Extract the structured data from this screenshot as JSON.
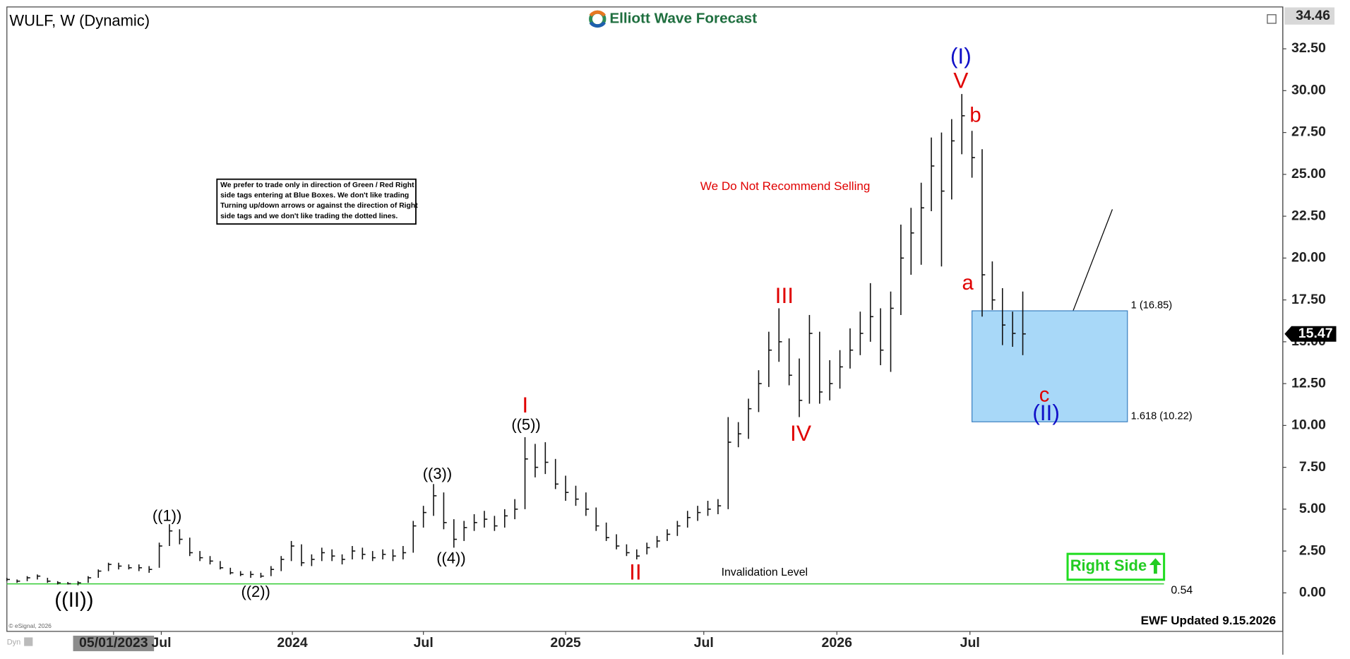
{
  "header": {
    "symbol": "WULF, W (Dynamic)",
    "brand": "Elliott Wave Forecast"
  },
  "chart_data": {
    "type": "hlc",
    "bars": [
      [
        0.9,
        0.7,
        0.8
      ],
      [
        0.8,
        0.6,
        0.7
      ],
      [
        1.0,
        0.7,
        0.9
      ],
      [
        1.1,
        0.8,
        1.0
      ],
      [
        0.9,
        0.6,
        0.7
      ],
      [
        0.7,
        0.5,
        0.6
      ],
      [
        0.65,
        0.5,
        0.55
      ],
      [
        0.7,
        0.45,
        0.6
      ],
      [
        1.0,
        0.6,
        0.9
      ],
      [
        1.4,
        0.9,
        1.3
      ],
      [
        1.8,
        1.3,
        1.7
      ],
      [
        1.8,
        1.4,
        1.6
      ],
      [
        1.7,
        1.4,
        1.5
      ],
      [
        1.7,
        1.3,
        1.5
      ],
      [
        1.6,
        1.2,
        1.4
      ],
      [
        3.0,
        1.5,
        2.8
      ],
      [
        4.1,
        2.8,
        3.7
      ],
      [
        3.8,
        2.9,
        3.2
      ],
      [
        3.3,
        2.2,
        2.4
      ],
      [
        2.5,
        1.9,
        2.1
      ],
      [
        2.2,
        1.7,
        1.9
      ],
      [
        1.9,
        1.4,
        1.5
      ],
      [
        1.5,
        1.1,
        1.2
      ],
      [
        1.3,
        1.0,
        1.1
      ],
      [
        1.3,
        0.9,
        1.1
      ],
      [
        1.2,
        0.9,
        1.0
      ],
      [
        1.6,
        1.0,
        1.4
      ],
      [
        2.2,
        1.3,
        2.0
      ],
      [
        3.1,
        1.9,
        2.8
      ],
      [
        2.9,
        1.6,
        1.8
      ],
      [
        2.3,
        1.6,
        2.0
      ],
      [
        2.7,
        1.9,
        2.4
      ],
      [
        2.6,
        1.9,
        2.2
      ],
      [
        2.3,
        1.7,
        2.0
      ],
      [
        2.8,
        2.0,
        2.5
      ],
      [
        2.7,
        2.0,
        2.3
      ],
      [
        2.5,
        1.9,
        2.1
      ],
      [
        2.6,
        2.0,
        2.3
      ],
      [
        2.6,
        1.9,
        2.2
      ],
      [
        2.8,
        2.0,
        2.4
      ],
      [
        4.3,
        2.4,
        4.0
      ],
      [
        5.2,
        3.9,
        4.8
      ],
      [
        6.5,
        4.6,
        5.8
      ],
      [
        6.0,
        3.8,
        4.2
      ],
      [
        4.4,
        2.7,
        3.2
      ],
      [
        4.3,
        3.1,
        3.9
      ],
      [
        4.7,
        3.7,
        4.2
      ],
      [
        4.9,
        3.9,
        4.4
      ],
      [
        4.6,
        3.7,
        4.0
      ],
      [
        5.0,
        3.9,
        4.6
      ],
      [
        5.6,
        4.4,
        5.0
      ],
      [
        9.3,
        5.0,
        8.0
      ],
      [
        8.9,
        6.9,
        7.5
      ],
      [
        9.0,
        7.1,
        7.8
      ],
      [
        8.0,
        6.2,
        6.5
      ],
      [
        7.0,
        5.5,
        6.0
      ],
      [
        6.4,
        5.2,
        5.6
      ],
      [
        6.0,
        4.6,
        5.0
      ],
      [
        5.1,
        3.7,
        4.0
      ],
      [
        4.2,
        3.1,
        3.3
      ],
      [
        3.5,
        2.6,
        2.8
      ],
      [
        2.9,
        2.2,
        2.4
      ],
      [
        2.6,
        2.0,
        2.2
      ],
      [
        3.0,
        2.3,
        2.7
      ],
      [
        3.4,
        2.7,
        3.1
      ],
      [
        3.8,
        3.1,
        3.5
      ],
      [
        4.3,
        3.4,
        4.0
      ],
      [
        4.9,
        3.9,
        4.5
      ],
      [
        5.2,
        4.3,
        4.8
      ],
      [
        5.5,
        4.6,
        5.0
      ],
      [
        5.6,
        4.7,
        5.2
      ],
      [
        10.5,
        5.0,
        9.0
      ],
      [
        10.2,
        8.7,
        9.5
      ],
      [
        11.6,
        9.2,
        11.0
      ],
      [
        13.3,
        10.8,
        12.5
      ],
      [
        15.6,
        12.3,
        14.5
      ],
      [
        17.0,
        13.8,
        15.0
      ],
      [
        15.2,
        12.4,
        13.0
      ],
      [
        14.0,
        10.5,
        11.5
      ],
      [
        16.6,
        11.3,
        15.5
      ],
      [
        15.6,
        11.3,
        12.0
      ],
      [
        13.9,
        11.5,
        12.5
      ],
      [
        14.5,
        12.2,
        13.5
      ],
      [
        15.8,
        13.4,
        14.5
      ],
      [
        16.8,
        14.2,
        15.5
      ],
      [
        18.5,
        15.0,
        16.5
      ],
      [
        17.0,
        13.6,
        14.5
      ],
      [
        18.0,
        13.2,
        17.0
      ],
      [
        22.0,
        16.6,
        20.0
      ],
      [
        23.0,
        19.0,
        21.5
      ],
      [
        24.5,
        19.6,
        23.0
      ],
      [
        27.2,
        22.8,
        25.5
      ],
      [
        27.5,
        19.5,
        24.0
      ],
      [
        28.3,
        23.5,
        27.0
      ],
      [
        29.8,
        26.2,
        28.5
      ],
      [
        27.6,
        24.8,
        26.0
      ],
      [
        26.5,
        16.5,
        19.0
      ],
      [
        19.8,
        16.9,
        17.5
      ],
      [
        18.2,
        14.8,
        16.0
      ],
      [
        16.8,
        14.7,
        15.5
      ],
      [
        18.0,
        14.2,
        15.47
      ]
    ],
    "xlim": [
      0,
      125.6
    ],
    "xticks": [
      {
        "value": 10.5,
        "label": "05/01/2023"
      },
      {
        "value": 15.2,
        "label": "Jul"
      },
      {
        "value": 28.1,
        "label": "2024"
      },
      {
        "value": 41.0,
        "label": "Jul"
      },
      {
        "value": 55.0,
        "label": "2025"
      },
      {
        "value": 68.6,
        "label": "Jul"
      },
      {
        "value": 81.7,
        "label": "2026"
      },
      {
        "value": 94.8,
        "label": "Jul"
      }
    ],
    "ylim": [
      -2.3,
      35
    ],
    "yticks": [
      {
        "value": 0,
        "label": "0.00"
      },
      {
        "value": 2.5,
        "label": "2.50"
      },
      {
        "value": 5,
        "label": "5.00"
      },
      {
        "value": 7.5,
        "label": "7.50"
      },
      {
        "value": 10,
        "label": "10.00"
      },
      {
        "value": 12.5,
        "label": "12.50"
      },
      {
        "value": 15,
        "label": "15.00"
      },
      {
        "value": 17.5,
        "label": "17.50"
      },
      {
        "value": 20,
        "label": "20.00"
      },
      {
        "value": 22.5,
        "label": "22.50"
      },
      {
        "value": 25,
        "label": "25.00"
      },
      {
        "value": 27.5,
        "label": "27.50"
      },
      {
        "value": 30,
        "label": "30.00"
      },
      {
        "value": 32.5,
        "label": "32.50"
      }
    ],
    "axis_top": 34.46,
    "last_price": 15.47,
    "invalidation": {
      "value": 0.54,
      "label": "Invalidation Level"
    },
    "target_box": {
      "top": 16.85,
      "bottom": 10.22,
      "top_label": "1 (16.85)",
      "bottom_label": "1.618 (10.22)"
    },
    "annotations": [
      {
        "text": "((II))",
        "color": "#000"
      },
      {
        "text": "((1))",
        "color": "#000"
      },
      {
        "text": "((2))",
        "color": "#000"
      },
      {
        "text": "((3))",
        "color": "#000"
      },
      {
        "text": "((4))",
        "color": "#000"
      },
      {
        "text": "((5))",
        "color": "#000"
      },
      {
        "text": "I",
        "color": "#e00000"
      },
      {
        "text": "II",
        "color": "#e00000"
      },
      {
        "text": "III",
        "color": "#e00000"
      },
      {
        "text": "IV",
        "color": "#e00000"
      },
      {
        "text": "V",
        "color": "#e00000"
      },
      {
        "text": "(I)",
        "color": "#1010c8"
      },
      {
        "text": "b",
        "color": "#e00000"
      },
      {
        "text": "a",
        "color": "#e00000"
      },
      {
        "text": "c",
        "color": "#e00000"
      },
      {
        "text": "(II)",
        "color": "#1010c8"
      }
    ]
  },
  "note": {
    "lines": [
      "We prefer to trade only in direction of Green / Red Right",
      "side tags entering at Blue Boxes. We don't like trading",
      "Turning up/down arrows or against the direction of Right",
      "side tags and we don't like trading the dotted lines."
    ]
  },
  "warning": "We Do Not Recommend Selling",
  "badge": "Right Side",
  "footer": {
    "updated": "EWF Updated 9.15.2026",
    "copyright": "© eSignal, 2026",
    "mode": "Dyn"
  }
}
